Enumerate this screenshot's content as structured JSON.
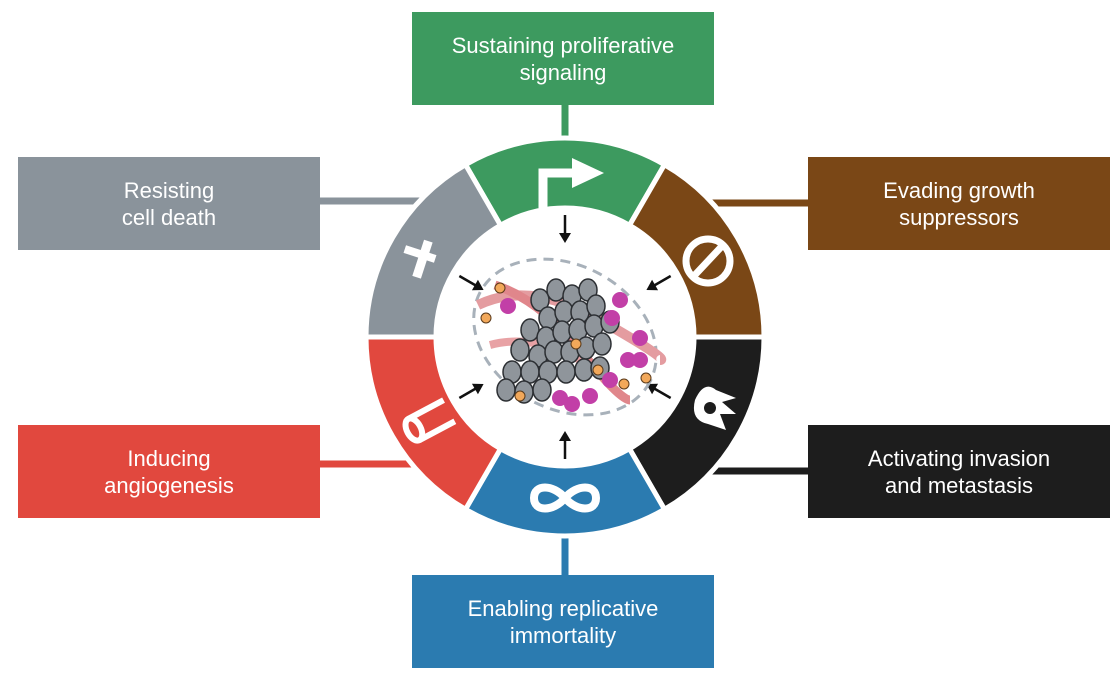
{
  "hallmarks": {
    "proliferative": {
      "line1": "Sustaining proliferative",
      "line2": "signaling",
      "color": "#3d9a5f",
      "icon": "bent-arrow-icon"
    },
    "suppressors": {
      "line1": "Evading growth",
      "line2": "suppressors",
      "color": "#7a4716",
      "icon": "prohibition-icon"
    },
    "invasion": {
      "line1": "Activating invasion",
      "line2": "and metastasis",
      "color": "#1d1d1d",
      "icon": "migrating-cell-icon"
    },
    "immortality": {
      "line1": "Enabling replicative",
      "line2": "immortality",
      "color": "#2b7bb0",
      "icon": "infinity-icon"
    },
    "angiogenesis": {
      "line1": "Inducing",
      "line2": "angiogenesis",
      "color": "#e1483e",
      "icon": "blood-vessel-icon"
    },
    "cell_death": {
      "line1": "Resisting",
      "line2": "cell death",
      "color": "#8a939b",
      "icon": "cross-icon"
    }
  },
  "center": {
    "icon": "tumor-cells-icon"
  }
}
